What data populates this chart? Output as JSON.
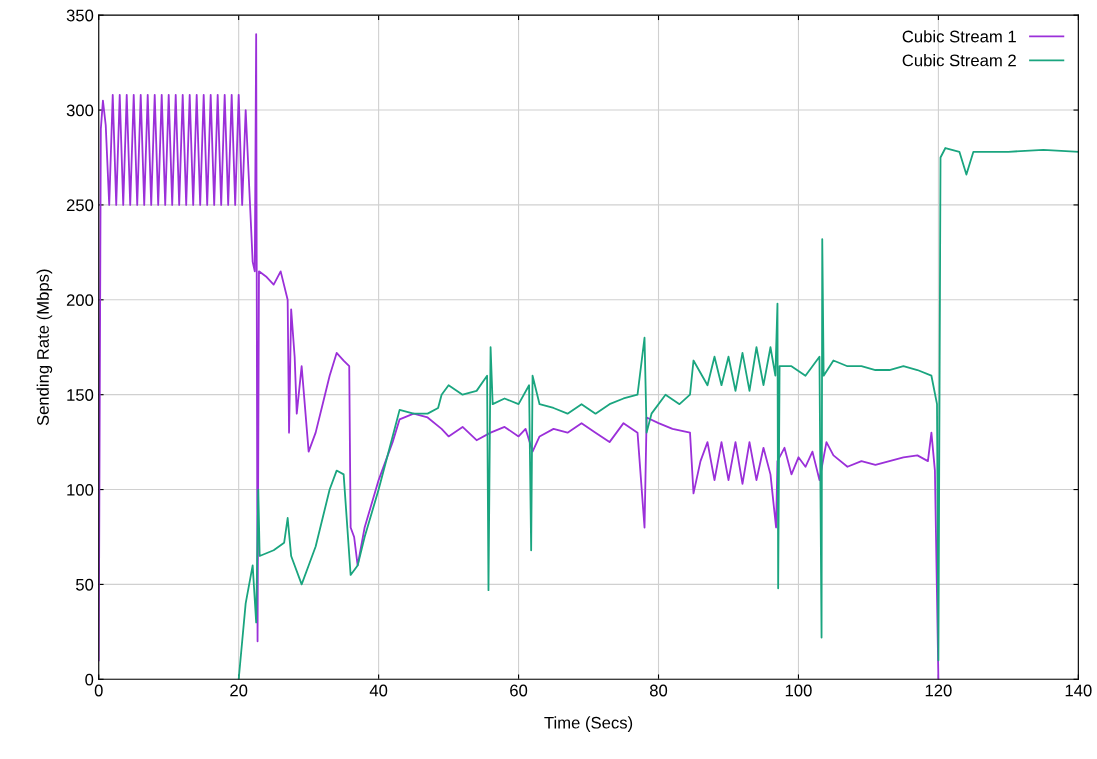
{
  "chart_data": {
    "type": "line",
    "xlabel": "Time (Secs)",
    "ylabel": "Sending Rate (Mbps)",
    "xlim": [
      0,
      140
    ],
    "xticks": [
      0,
      20,
      40,
      60,
      80,
      100,
      120,
      140
    ],
    "ylim": [
      0,
      350
    ],
    "yticks": [
      0,
      50,
      100,
      150,
      200,
      250,
      300,
      350
    ],
    "grid": true,
    "legend": "top right",
    "series": [
      {
        "name": "Cubic Stream 1",
        "color": "#9b30d9",
        "x": [
          0,
          0.3,
          0.6,
          1,
          1.5,
          2,
          2.5,
          3,
          3.5,
          4,
          4.5,
          5,
          5.5,
          6,
          6.5,
          7,
          7.5,
          8,
          8.5,
          9,
          9.5,
          10,
          10.5,
          11,
          11.5,
          12,
          12.5,
          13,
          13.5,
          14,
          14.5,
          15,
          15.5,
          16,
          16.5,
          17,
          17.5,
          18,
          18.5,
          19,
          19.5,
          20,
          20.5,
          21,
          21.5,
          22,
          22.3,
          22.5,
          22.7,
          22.9,
          24,
          25,
          26,
          27,
          27.2,
          27.5,
          28,
          28.3,
          29,
          30,
          31,
          32,
          33,
          34,
          35,
          35.8,
          36,
          36.5,
          37,
          38,
          40,
          42,
          43,
          45,
          47,
          49,
          50,
          52,
          54,
          56,
          58,
          60,
          61,
          62,
          63,
          65,
          67,
          69,
          71,
          73,
          75,
          77,
          78,
          78.3,
          80,
          82,
          84.5,
          85,
          86,
          87,
          88,
          89,
          90,
          91,
          92,
          93,
          94,
          95,
          96,
          96.8,
          97,
          98,
          99,
          100,
          101,
          102,
          103,
          104,
          105,
          107,
          109,
          111,
          113,
          115,
          117,
          118.5,
          119,
          119.5,
          120
        ],
        "values": [
          10,
          290,
          305,
          292,
          250,
          308,
          250,
          308,
          250,
          308,
          250,
          308,
          250,
          308,
          250,
          308,
          250,
          308,
          250,
          308,
          250,
          308,
          250,
          308,
          250,
          308,
          250,
          308,
          250,
          308,
          250,
          308,
          250,
          308,
          250,
          308,
          250,
          308,
          250,
          308,
          250,
          308,
          250,
          300,
          260,
          220,
          215,
          340,
          20,
          215,
          212,
          208,
          215,
          200,
          130,
          195,
          170,
          140,
          165,
          120,
          130,
          145,
          160,
          172,
          168,
          165,
          80,
          75,
          60,
          80,
          105,
          125,
          137,
          140,
          138,
          132,
          128,
          133,
          126,
          130,
          133,
          128,
          132,
          120,
          128,
          132,
          130,
          135,
          130,
          125,
          135,
          130,
          80,
          138,
          135,
          132,
          130,
          98,
          115,
          125,
          105,
          125,
          105,
          125,
          103,
          125,
          105,
          122,
          108,
          80,
          115,
          122,
          108,
          117,
          112,
          120,
          105,
          125,
          118,
          112,
          115,
          113,
          115,
          117,
          118,
          115,
          130,
          110,
          0
        ]
      },
      {
        "name": "Cubic Stream 2",
        "color": "#1aa57f",
        "x": [
          20,
          21,
          22,
          22.5,
          22.8,
          23,
          25,
          26.5,
          27,
          27.5,
          29,
          30,
          31,
          32,
          33,
          34,
          35,
          36,
          37,
          38,
          40,
          42,
          43,
          45,
          47,
          48.5,
          49,
          50,
          52,
          54,
          55.5,
          55.7,
          56,
          56.3,
          58,
          60,
          61.5,
          61.8,
          62,
          63,
          65,
          67,
          69,
          71,
          73,
          75,
          77,
          78,
          78.3,
          79,
          81,
          83,
          84.5,
          85,
          87,
          88,
          89,
          90,
          91,
          92,
          93,
          94,
          95,
          96,
          96.7,
          97,
          97.1,
          97.3,
          99,
          101,
          103,
          103.3,
          103.4,
          103.6,
          105,
          107,
          109,
          111,
          113,
          115,
          117,
          119,
          119.8,
          120,
          120.3,
          121,
          123,
          124,
          125,
          130,
          135,
          140
        ],
        "values": [
          0,
          40,
          60,
          30,
          100,
          65,
          68,
          72,
          85,
          65,
          50,
          60,
          70,
          85,
          100,
          110,
          108,
          55,
          60,
          75,
          100,
          128,
          142,
          140,
          140,
          143,
          150,
          155,
          150,
          152,
          160,
          47,
          175,
          145,
          148,
          145,
          155,
          68,
          160,
          145,
          143,
          140,
          145,
          140,
          145,
          148,
          150,
          180,
          130,
          140,
          150,
          145,
          150,
          168,
          155,
          170,
          155,
          170,
          152,
          172,
          152,
          175,
          155,
          175,
          160,
          198,
          48,
          165,
          165,
          160,
          170,
          22,
          232,
          160,
          168,
          165,
          165,
          163,
          163,
          165,
          163,
          160,
          145,
          10,
          275,
          280,
          278,
          266,
          278,
          278,
          279,
          278
        ]
      }
    ]
  }
}
